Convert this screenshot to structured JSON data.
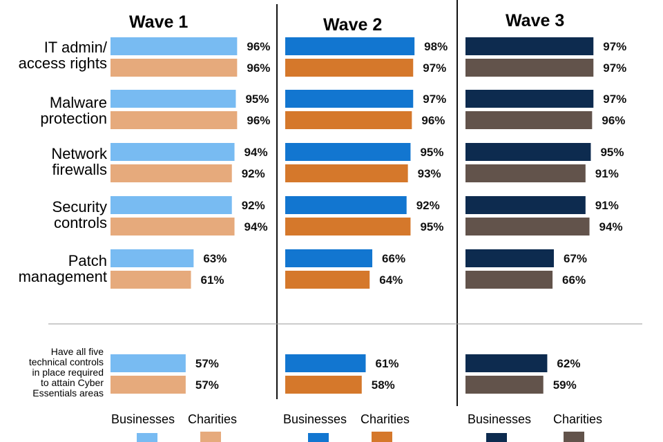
{
  "chart_data": {
    "type": "bar",
    "orientation": "horizontal",
    "waves": [
      {
        "title": "Wave 1",
        "rows": [
          {
            "businesses": 96,
            "charities": 96,
            "labels": [
              "96%",
              "96%"
            ]
          },
          {
            "businesses": 95,
            "charities": 96,
            "labels": [
              "95%",
              "96%"
            ]
          },
          {
            "businesses": 94,
            "charities": 92,
            "labels": [
              "94%",
              "92%"
            ]
          },
          {
            "businesses": 92,
            "charities": 94,
            "labels": [
              "92%",
              "94%"
            ]
          },
          {
            "businesses": 63,
            "charities": 61,
            "labels": [
              "63%",
              "61%"
            ]
          },
          {
            "businesses": 57,
            "charities": 57,
            "labels": [
              "57%",
              "57%"
            ]
          }
        ],
        "colors": {
          "businesses": "#78BBF2",
          "charities": "#E6AA7C"
        },
        "legend": [
          "Businesses",
          "Charities"
        ]
      },
      {
        "title": "Wave 2",
        "rows": [
          {
            "businesses": 98,
            "charities": 97,
            "labels": [
              "98%",
              "97%"
            ]
          },
          {
            "businesses": 97,
            "charities": 96,
            "labels": [
              "97%",
              "96%"
            ]
          },
          {
            "businesses": 95,
            "charities": 93,
            "labels": [
              "95%",
              "93%"
            ]
          },
          {
            "businesses": 92,
            "charities": 95,
            "labels": [
              "92%",
              "95%"
            ]
          },
          {
            "businesses": 66,
            "charities": 64,
            "labels": [
              "66%",
              "64%"
            ]
          },
          {
            "businesses": 61,
            "charities": 58,
            "labels": [
              "61%",
              "58%"
            ]
          }
        ],
        "colors": {
          "businesses": "#1276D0",
          "charities": "#D5782B"
        },
        "legend": [
          "Businesses",
          "Charities"
        ]
      },
      {
        "title": "Wave 3",
        "rows": [
          {
            "businesses": 97,
            "charities": 97,
            "labels": [
              "97%",
              "97%"
            ]
          },
          {
            "businesses": 97,
            "charities": 96,
            "labels": [
              "97%",
              "96%"
            ]
          },
          {
            "businesses": 95,
            "charities": 91,
            "labels": [
              "95%",
              "91%"
            ]
          },
          {
            "businesses": 91,
            "charities": 94,
            "labels": [
              "91%",
              "94%"
            ]
          },
          {
            "businesses": 67,
            "charities": 66,
            "labels": [
              "67%",
              "66%"
            ]
          },
          {
            "businesses": 62,
            "charities": 59,
            "labels": [
              "62%",
              "59%"
            ]
          }
        ],
        "colors": {
          "businesses": "#0D2B4F",
          "charities": "#62534B"
        },
        "legend": [
          "Businesses",
          "Charities"
        ]
      }
    ],
    "categories": [
      [
        "IT admin/",
        "access rights"
      ],
      [
        "Malware",
        "protection"
      ],
      [
        "Network",
        "firewalls"
      ],
      [
        "Security",
        "controls"
      ],
      [
        "Patch",
        "management"
      ]
    ],
    "summary_label": [
      "Have all five",
      "technical controls",
      "in place required",
      "to attain Cyber",
      "Essentials areas"
    ],
    "xlim": [
      0,
      100
    ]
  }
}
